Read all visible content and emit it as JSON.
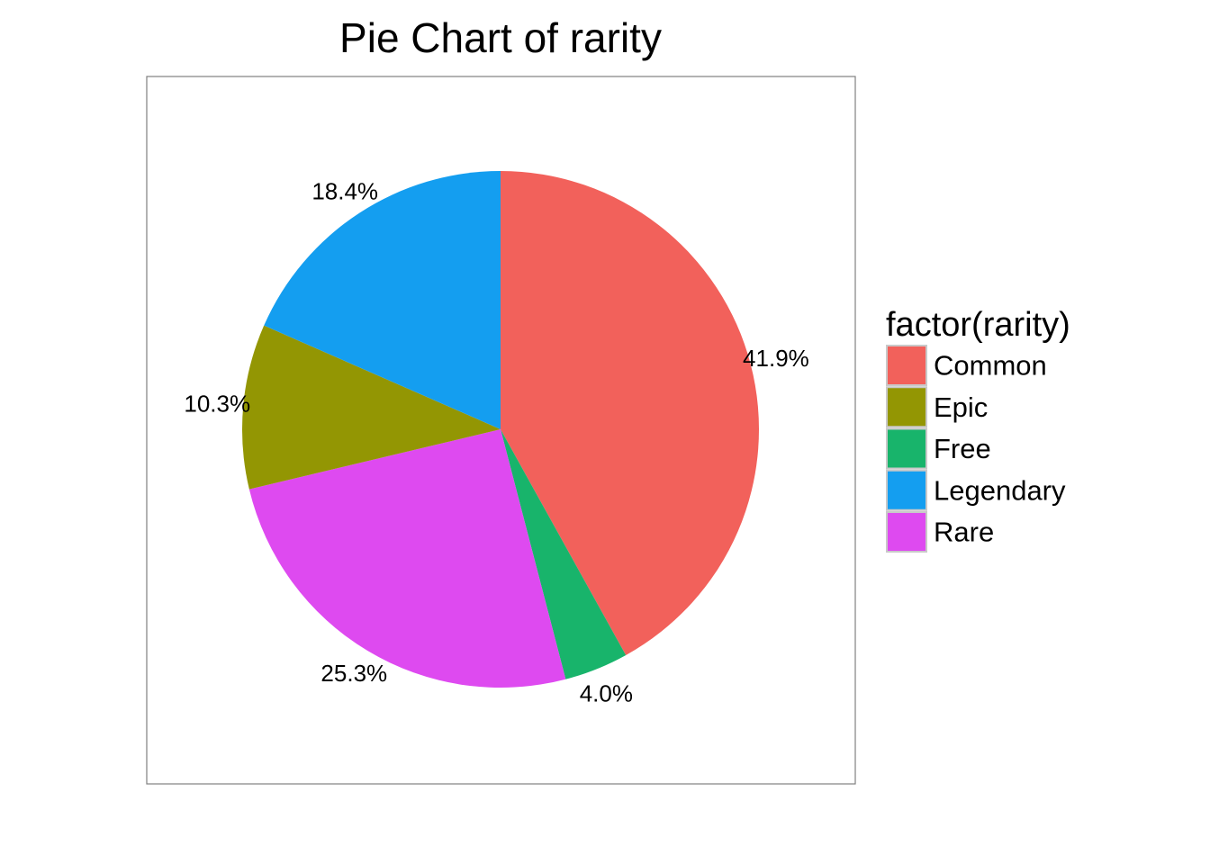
{
  "chart_data": {
    "type": "pie",
    "title": "Pie Chart of rarity",
    "legend": {
      "title": "factor(rarity)",
      "position": "right"
    },
    "slices": [
      {
        "category": "Common",
        "value": 41.9,
        "label": "41.9%",
        "color": "#F2615B"
      },
      {
        "category": "Free",
        "value": 4.0,
        "label": "4.0%",
        "color": "#18B46B"
      },
      {
        "category": "Rare",
        "value": 25.3,
        "label": "25.3%",
        "color": "#DE4AF0"
      },
      {
        "category": "Epic",
        "value": 10.3,
        "label": "10.3%",
        "color": "#939603"
      },
      {
        "category": "Legendary",
        "value": 18.4,
        "label": "18.4%",
        "color": "#149EF0"
      }
    ],
    "legend_order": [
      "Common",
      "Epic",
      "Free",
      "Legendary",
      "Rare"
    ],
    "start_angle": "12 o'clock",
    "direction": "clockwise",
    "grid": false
  }
}
